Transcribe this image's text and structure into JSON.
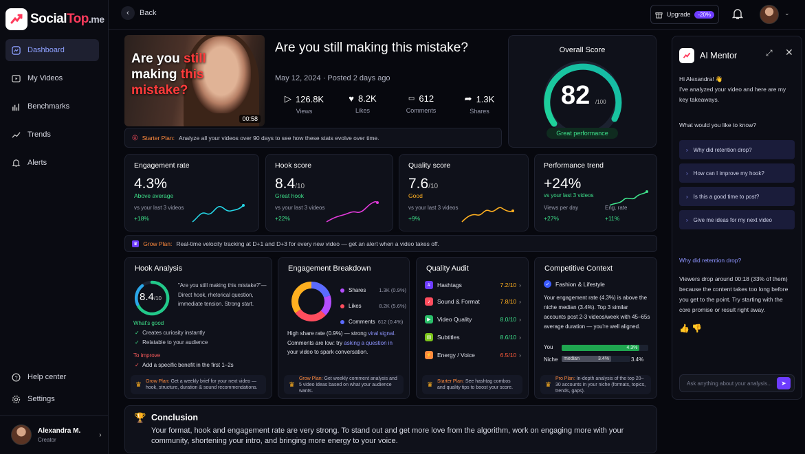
{
  "brand": {
    "part1": "Social",
    "part2": "Top",
    "part3": ".me"
  },
  "nav": {
    "items": [
      {
        "label": "Dashboard"
      },
      {
        "label": "My Videos"
      },
      {
        "label": "Benchmarks"
      },
      {
        "label": "Trends"
      },
      {
        "label": "Alerts"
      }
    ],
    "help": "Help center",
    "settings": "Settings"
  },
  "user": {
    "name": "Alexandra M.",
    "role": "Creator"
  },
  "topbar": {
    "back": "Back",
    "upgrade": "Upgrade",
    "discount": "-20%"
  },
  "video": {
    "overlay_1": "Are you ",
    "overlay_2": "still",
    "overlay_3": "making ",
    "overlay_4": "this",
    "overlay_5": "mistake?",
    "duration": "00:58",
    "title": "Are you still making this mistake?",
    "date": "May 12, 2024 · Posted 2 days ago",
    "stats": [
      {
        "value": "126.8K",
        "label": "Views"
      },
      {
        "value": "8.2K",
        "label": "Likes"
      },
      {
        "value": "612",
        "label": "Comments"
      },
      {
        "value": "1.3K",
        "label": "Shares"
      }
    ]
  },
  "starter_banner": {
    "label": "Starter Plan:",
    "text": "Analyze all your videos over 90 days to see how these stats evolve over time."
  },
  "overall": {
    "title": "Overall Score",
    "value": "82",
    "max": "/100",
    "badge": "Great performance"
  },
  "metrics": [
    {
      "title": "Engagement rate",
      "value": "4.3%",
      "unit": "",
      "label": "Above average",
      "vs": "vs your last 3 videos",
      "delta": "+18%"
    },
    {
      "title": "Hook score",
      "value": "8.4",
      "unit": "/10",
      "label": "Great hook",
      "vs": "vs your last 3 videos",
      "delta": "+22%"
    },
    {
      "title": "Quality score",
      "value": "7.6",
      "unit": "/10",
      "label": "Good",
      "vs": "vs your last 3 videos",
      "delta": "+9%"
    },
    {
      "title": "Performance trend",
      "value": "+24%",
      "unit": "",
      "label": "vs your last 3 videos",
      "vs1": "Views per day",
      "vs2": "Eng. rate",
      "delta1": "+27%",
      "delta2": "+11%"
    }
  ],
  "grow_banner": {
    "label": "Grow Plan:",
    "text": "Real-time velocity tracking at D+1 and D+3 for every new video — get an alert when a video takes off."
  },
  "hook": {
    "title": "Hook Analysis",
    "value": "8.4",
    "max": "/10",
    "quote": "\"Are you still making this mistake?\"— Direct hook, rhetorical question, immediate tension. Strong start.",
    "good_title": "What's good",
    "good": [
      "Creates curiosity instantly",
      "Relatable to your audience"
    ],
    "improve_title": "To improve",
    "improve": [
      "Add a specific benefit in the first 1–2s"
    ],
    "upsell_label": "Grow Plan:",
    "upsell": "Get a weekly brief for your next video — hook, structure, duration & sound recommendations."
  },
  "engagement": {
    "title": "Engagement Breakdown",
    "rows": [
      {
        "name": "Shares",
        "value": "1.3K (0.9%)",
        "color": "#b44dff"
      },
      {
        "name": "Likes",
        "value": "8.2K (5.6%)",
        "color": "#ff4d5e"
      },
      {
        "name": "Comments",
        "value": "612 (0.4%)",
        "color": "#5b6bff"
      }
    ],
    "text1": "High share rate (0.9%) — strong ",
    "link1": "viral signal",
    "text2": ". Comments are low: try ",
    "link2": "asking a question in",
    "text3": "your video to spark conversation.",
    "upsell_label": "Grow Plan:",
    "upsell": "Get weekly comment analysis and 5 video ideas based on what your audience wants."
  },
  "quality": {
    "title": "Quality Audit",
    "rows": [
      {
        "name": "Hashtags",
        "score": "7.2/10",
        "color": "#6d3cff",
        "level": "orange"
      },
      {
        "name": "Sound & Format",
        "score": "7.8/10",
        "color": "#ff4d5e",
        "level": "orange"
      },
      {
        "name": "Video Quality",
        "score": "8.0/10",
        "color": "#2bbf6a",
        "level": "green"
      },
      {
        "name": "Subtitles",
        "score": "8.6/10",
        "color": "#7bc41a",
        "level": "green"
      },
      {
        "name": "Energy / Voice",
        "score": "6.5/10",
        "color": "#ff8a3d",
        "level": "orange"
      }
    ],
    "upsell_label": "Starter Plan:",
    "upsell": "See hashtag combos and quality tips to boost your score."
  },
  "competitive": {
    "title": "Competitive Context",
    "niche": "Fashion & Lifestyle",
    "text": "Your engagement rate (4.3%) is above the niche median (3.4%). Top 3 similar accounts post 2-3 videos/week with 45–65s average duration — you're well aligned.",
    "you_label": "You",
    "you_value": "4.3%",
    "you_fraction": 0.9,
    "niche_label": "Niche",
    "niche_inner": "median",
    "niche_value": "3.4%",
    "niche_fraction": 0.72,
    "upsell_label": "Pro Plan:",
    "upsell": "In-depth analysis of the top 20–30 accounts in your niche (formats, topics, trends, gaps)."
  },
  "conclusion": {
    "title": "Conclusion",
    "text": "Your format, hook and engagement rate are very strong. To stand out and get more love from the algorithm, work on engaging more with your community, shortening your intro, and bringing more energy to your voice."
  },
  "mentor": {
    "title": "AI Mentor",
    "greeting": "Hi Alexandra! 👋",
    "intro": "I've analyzed your video and here are my key takeaways.",
    "question": "What would you like to know?",
    "suggestions": [
      "Why did retention drop?",
      "How can I improve my hook?",
      "Is this a good time to post?",
      "Give me ideas for my next video"
    ],
    "user_q": "Why did retention drop?",
    "answer": "Viewers drop around 00:18 (33% of them) because the content takes too long before you get to the point. Try starting with the core promise or result right away.",
    "input_placeholder": "Ask anything about your analysis..."
  }
}
